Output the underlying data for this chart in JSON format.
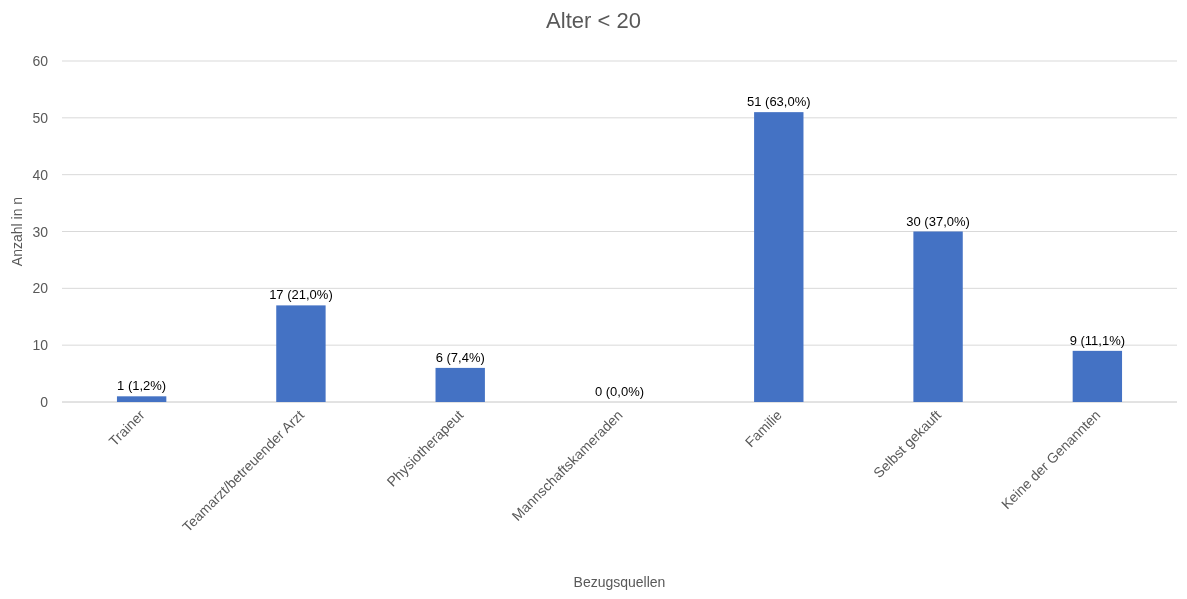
{
  "chart_data": {
    "type": "bar",
    "title": "Alter < 20",
    "xlabel": "Bezugsquellen",
    "ylabel": "Anzahl in n",
    "categories": [
      "Trainer",
      "Teamarzt/betreuender Arzt",
      "Physiotherapeut",
      "Mannschaftskameraden",
      "Familie",
      "Selbst gekauft",
      "Keine der Genannten"
    ],
    "values": [
      1,
      17,
      6,
      0,
      51,
      30,
      9
    ],
    "value_labels": [
      "1 (1,2%)",
      "17 (21,0%)",
      "6 (7,4%)",
      "0 (0,0%)",
      "51 (63,0%)",
      "30 (37,0%)",
      "9 (11,1%)"
    ],
    "color": "#4472c4",
    "ylim": [
      0,
      60
    ],
    "yticks": [
      0,
      10,
      20,
      30,
      40,
      50,
      60
    ],
    "grid": "y"
  }
}
